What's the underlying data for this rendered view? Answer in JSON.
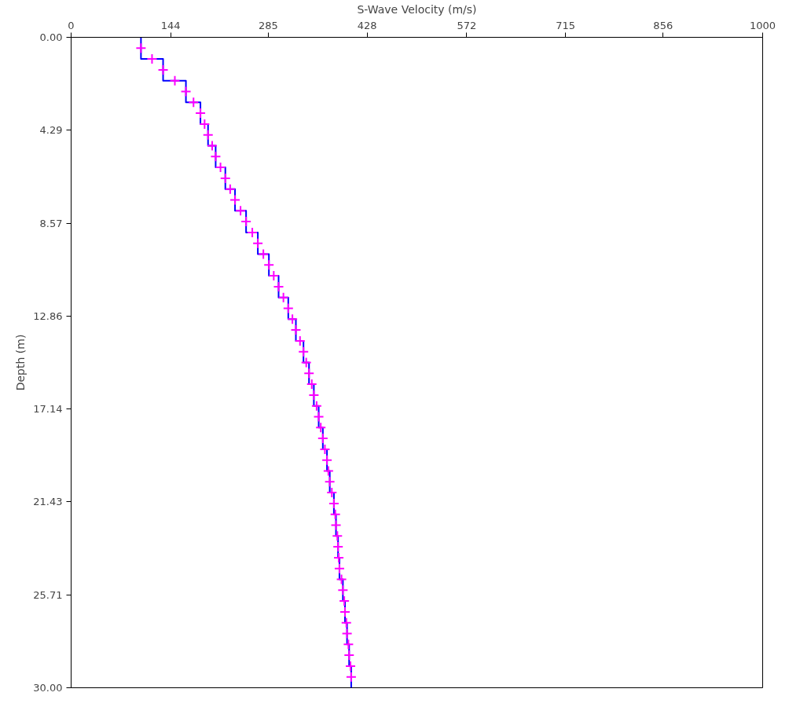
{
  "chart_data": {
    "type": "line",
    "xlabel": "S-Wave Velocity (m/s)",
    "ylabel": "Depth (m)",
    "xlim": [
      0,
      1000
    ],
    "xticks": [
      0,
      144,
      285,
      428,
      572,
      715,
      856,
      1000
    ],
    "ylim": [
      30,
      0
    ],
    "yticks": [
      {
        "value": 0,
        "label": "0.00"
      },
      {
        "value": 4.29,
        "label": "4.29"
      },
      {
        "value": 8.57,
        "label": "8.57"
      },
      {
        "value": 12.86,
        "label": "12.86"
      },
      {
        "value": 17.14,
        "label": "17.14"
      },
      {
        "value": 21.43,
        "label": "21.43"
      },
      {
        "value": 25.71,
        "label": "25.71"
      },
      {
        "value": 30,
        "label": "30.00"
      }
    ],
    "grid": false,
    "series": [
      {
        "color": "#0000ff",
        "marker": "none",
        "x": [
          101,
          101,
          133,
          133,
          166,
          166,
          187,
          187,
          198,
          198,
          209,
          209,
          223,
          223,
          237,
          237,
          253,
          253,
          270,
          270,
          286,
          286,
          300,
          300,
          314,
          314,
          325,
          325,
          336,
          336,
          344,
          344,
          351,
          351,
          358,
          358,
          364,
          364,
          370,
          370,
          374,
          374,
          380,
          380,
          383,
          383,
          386,
          386,
          388,
          388,
          393,
          393,
          396,
          396,
          399,
          399,
          402,
          402,
          405,
          405
        ],
        "values": [
          0,
          1,
          1,
          2,
          2,
          3,
          3,
          4,
          4,
          5,
          5,
          6,
          6,
          7,
          7,
          8,
          8,
          9,
          9,
          10,
          10,
          11,
          11,
          12,
          12,
          13,
          13,
          14,
          14,
          15,
          15,
          16,
          16,
          17,
          17,
          18,
          18,
          19,
          19,
          20,
          20,
          21,
          21,
          22,
          22,
          23,
          23,
          24,
          24,
          25,
          25,
          26,
          26,
          27,
          27,
          28,
          28,
          29,
          29,
          30
        ]
      },
      {
        "type": "scatter",
        "color": "#ff00ff",
        "marker": "cross",
        "x": [
          101,
          117,
          133,
          150,
          166,
          177,
          187,
          193,
          198,
          204,
          209,
          216,
          223,
          230,
          237,
          245,
          253,
          262,
          270,
          278,
          286,
          293,
          300,
          307,
          314,
          320,
          325,
          331,
          336,
          340,
          344,
          348,
          351,
          355,
          358,
          361,
          364,
          367,
          370,
          372,
          374,
          377,
          380,
          382,
          383,
          385,
          386,
          387,
          388,
          391,
          393,
          395,
          396,
          398,
          399,
          401,
          402,
          404,
          405
        ],
        "values": [
          0.5,
          1,
          1.5,
          2,
          2.5,
          3,
          3.5,
          4,
          4.5,
          5,
          5.5,
          6,
          6.5,
          7,
          7.5,
          8,
          8.5,
          9,
          9.5,
          10,
          10.5,
          11,
          11.5,
          12,
          12.5,
          13,
          13.5,
          14,
          14.5,
          15,
          15.5,
          16,
          16.5,
          17,
          17.5,
          18,
          18.5,
          19,
          19.5,
          20,
          20.5,
          21,
          21.5,
          22,
          22.5,
          23,
          23.5,
          24,
          24.5,
          25,
          25.5,
          26,
          26.5,
          27,
          27.5,
          28,
          28.5,
          29,
          29.5
        ]
      }
    ]
  }
}
